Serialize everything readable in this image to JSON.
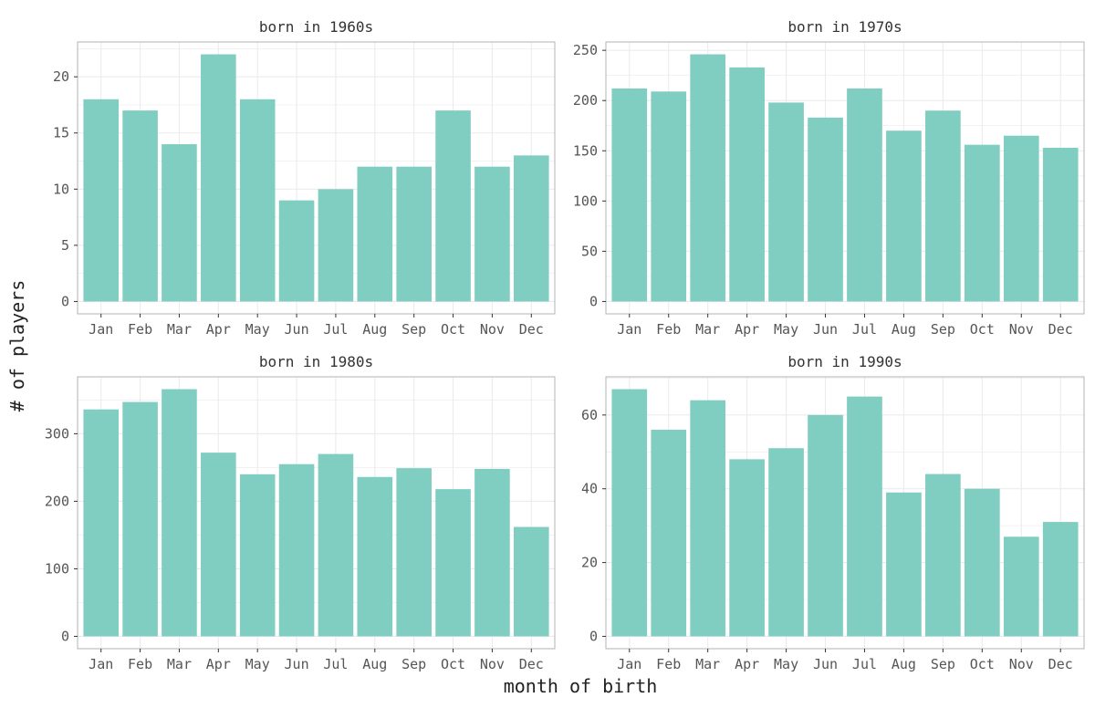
{
  "colors": {
    "bar": "#80cdc1",
    "grid": "#ebebeb",
    "panel_border": "#b3b3b3",
    "background": "#ffffff"
  },
  "chart_data": [
    {
      "type": "bar",
      "title": "born in 1960s",
      "categories": [
        "Jan",
        "Feb",
        "Mar",
        "Apr",
        "May",
        "Jun",
        "Jul",
        "Aug",
        "Sep",
        "Oct",
        "Nov",
        "Dec"
      ],
      "values": [
        18,
        17,
        14,
        22,
        18,
        9,
        10,
        12,
        12,
        17,
        12,
        13
      ],
      "yticks": [
        0,
        5,
        10,
        15,
        20
      ],
      "ylim": [
        -1.1,
        23.1
      ],
      "grid": true
    },
    {
      "type": "bar",
      "title": "born in 1970s",
      "categories": [
        "Jan",
        "Feb",
        "Mar",
        "Apr",
        "May",
        "Jun",
        "Jul",
        "Aug",
        "Sep",
        "Oct",
        "Nov",
        "Dec"
      ],
      "values": [
        212,
        209,
        246,
        233,
        198,
        183,
        212,
        170,
        190,
        156,
        165,
        153
      ],
      "yticks": [
        0,
        50,
        100,
        150,
        200,
        250
      ],
      "ylim": [
        -12.3,
        258.3
      ],
      "grid": true
    },
    {
      "type": "bar",
      "title": "born in 1980s",
      "categories": [
        "Jan",
        "Feb",
        "Mar",
        "Apr",
        "May",
        "Jun",
        "Jul",
        "Aug",
        "Sep",
        "Oct",
        "Nov",
        "Dec"
      ],
      "values": [
        336,
        347,
        366,
        272,
        240,
        255,
        270,
        236,
        249,
        218,
        248,
        162
      ],
      "yticks": [
        0,
        100,
        200,
        300
      ],
      "ylim": [
        -18.3,
        384.3
      ],
      "grid": true
    },
    {
      "type": "bar",
      "title": "born in 1990s",
      "categories": [
        "Jan",
        "Feb",
        "Mar",
        "Apr",
        "May",
        "Jun",
        "Jul",
        "Aug",
        "Sep",
        "Oct",
        "Nov",
        "Dec"
      ],
      "values": [
        67,
        56,
        64,
        48,
        51,
        60,
        65,
        39,
        44,
        40,
        27,
        31
      ],
      "yticks": [
        0,
        20,
        40,
        60
      ],
      "ylim": [
        -3.35,
        70.35
      ],
      "grid": true
    }
  ],
  "xlabel": "month of birth",
  "ylabel": "# of players"
}
